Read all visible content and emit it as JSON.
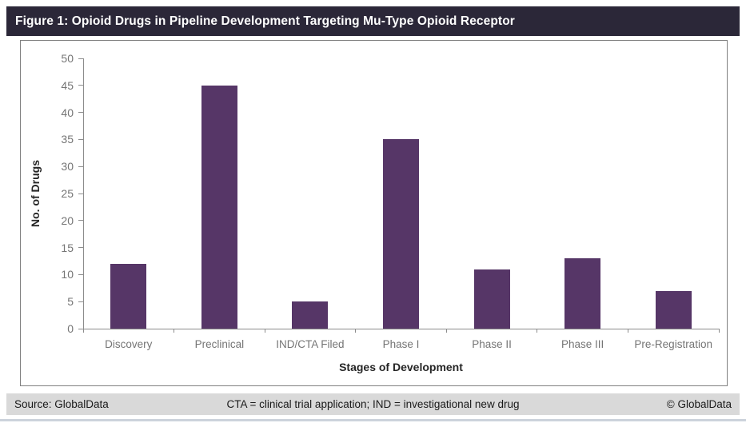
{
  "header": {
    "title": "Figure 1: Opioid Drugs in Pipeline Development Targeting Mu-Type Opioid Receptor"
  },
  "chart_data": {
    "type": "bar",
    "title": "Figure 1: Opioid Drugs in Pipeline Development Targeting Mu-Type Opioid Receptor",
    "categories": [
      "Discovery",
      "Preclinical",
      "IND/CTA Filed",
      "Phase I",
      "Phase II",
      "Phase III",
      "Pre-Registration"
    ],
    "values": [
      12,
      45,
      5,
      35,
      11,
      13,
      7
    ],
    "xlabel": "Stages of Development",
    "ylabel": "No. of Drugs",
    "ylim": [
      0,
      50
    ],
    "ytick_interval": 5,
    "bar_color": "#563667",
    "axis_color": "#8c8c8c",
    "tick_label_color": "#757575",
    "grid": false,
    "legend_position": "none"
  },
  "footer": {
    "source": "Source: GlobalData",
    "note": "CTA = clinical trial application; IND = investigational new drug",
    "copyright": "© GlobalData"
  },
  "colors": {
    "header_bg": "#2b2738",
    "footer_bg": "#d9d9d9",
    "panel_border": "#808080"
  }
}
